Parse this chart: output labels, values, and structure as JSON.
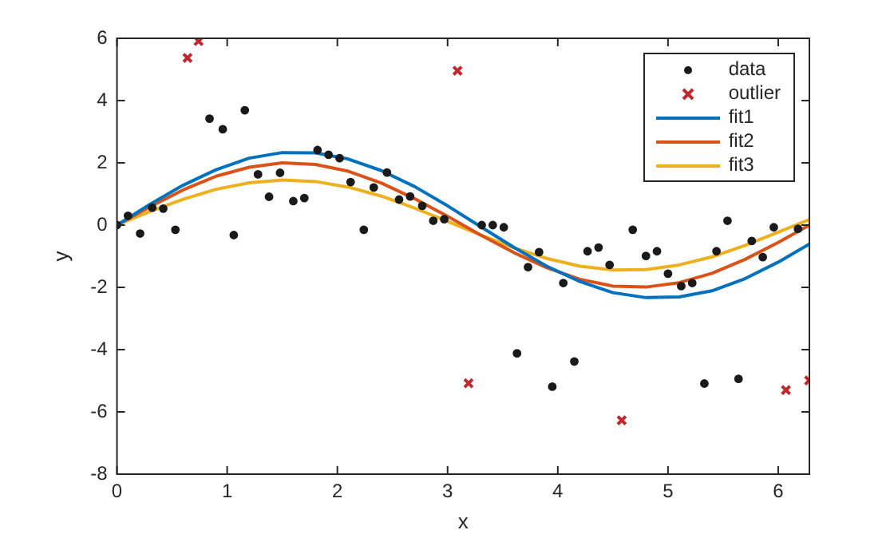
{
  "chart_data": {
    "type": "scatter",
    "xlabel": "x",
    "ylabel": "y",
    "xlim": [
      0,
      6.283
    ],
    "xticks": [
      0,
      1,
      2,
      3,
      4,
      5,
      6
    ],
    "ylim": [
      -8,
      6
    ],
    "yticks": [
      -8,
      -6,
      -4,
      -2,
      0,
      2,
      4,
      6
    ],
    "grid": false,
    "legend": "top right",
    "series": [
      {
        "name": "data",
        "marker": "circle",
        "color": "#1a1a1a",
        "x": [
          0,
          0.1,
          0.21,
          0.32,
          0.42,
          0.53,
          0.84,
          0.96,
          1.06,
          1.16,
          1.28,
          1.38,
          1.48,
          1.6,
          1.7,
          1.82,
          1.92,
          2.02,
          2.12,
          2.24,
          2.33,
          2.45,
          2.56,
          2.66,
          2.77,
          2.87,
          2.97,
          3.31,
          3.41,
          3.51,
          3.63,
          3.73,
          3.83,
          3.95,
          4.05,
          4.15,
          4.27,
          4.37,
          4.47,
          4.68,
          4.8,
          4.9,
          5.0,
          5.12,
          5.22,
          5.33,
          5.44,
          5.54,
          5.64,
          5.76,
          5.86,
          5.96,
          6.18
        ],
        "values": [
          0,
          0.3,
          -0.27,
          0.56,
          0.53,
          -0.15,
          3.42,
          3.08,
          -0.32,
          3.69,
          1.63,
          0.91,
          1.68,
          0.77,
          0.87,
          2.41,
          2.26,
          2.15,
          1.38,
          -0.15,
          1.21,
          1.69,
          0.82,
          0.92,
          0.62,
          0.14,
          0.19,
          0,
          0,
          -0.07,
          -4.12,
          -1.35,
          -0.87,
          -5.19,
          -1.86,
          -4.38,
          -0.84,
          -0.72,
          -1.28,
          -0.15,
          -0.99,
          -0.84,
          -1.56,
          -1.96,
          -1.86,
          -5.09,
          -0.84,
          0.14,
          -4.94,
          -0.51,
          -1.03,
          -0.07,
          -0.12
        ]
      },
      {
        "name": "outlier",
        "marker": "cross",
        "color": "#c0282d",
        "x": [
          0.64,
          0.74,
          3.09,
          3.19,
          4.58,
          6.07,
          6.28
        ],
        "values": [
          5.37,
          5.91,
          4.96,
          -5.08,
          -6.27,
          -5.3,
          -4.99
        ]
      },
      {
        "name": "fit1",
        "type": "line",
        "marker": "none",
        "color": "#0072bd",
        "x": [
          0,
          0.3,
          0.6,
          0.9,
          1.2,
          1.5,
          1.8,
          2.1,
          2.4,
          2.7,
          3.0,
          3.3,
          3.6,
          3.9,
          4.2,
          4.5,
          4.8,
          5.1,
          5.4,
          5.7,
          6.0,
          6.283
        ],
        "values": [
          0,
          0.67,
          1.28,
          1.78,
          2.15,
          2.33,
          2.32,
          2.12,
          1.75,
          1.24,
          0.62,
          -0.05,
          -0.71,
          -1.32,
          -1.81,
          -2.17,
          -2.33,
          -2.31,
          -2.11,
          -1.72,
          -1.19,
          -0.61
        ]
      },
      {
        "name": "fit2",
        "type": "line",
        "marker": "none",
        "color": "#d95319",
        "x": [
          0,
          0.3,
          0.6,
          0.9,
          1.2,
          1.5,
          1.8,
          2.1,
          2.4,
          2.7,
          3.0,
          3.3,
          3.6,
          3.9,
          4.2,
          4.5,
          4.8,
          5.1,
          5.4,
          5.7,
          6.0,
          6.283
        ],
        "values": [
          0,
          0.59,
          1.13,
          1.57,
          1.86,
          2.0,
          1.95,
          1.73,
          1.35,
          0.85,
          0.28,
          -0.32,
          -0.88,
          -1.37,
          -1.74,
          -1.96,
          -1.99,
          -1.85,
          -1.55,
          -1.1,
          -0.56,
          0
        ]
      },
      {
        "name": "fit3",
        "type": "line",
        "marker": "none",
        "color": "#edb120",
        "x": [
          0,
          0.3,
          0.6,
          0.9,
          1.2,
          1.5,
          1.8,
          2.1,
          2.4,
          2.7,
          3.0,
          3.3,
          3.6,
          3.9,
          4.2,
          4.5,
          4.8,
          5.1,
          5.4,
          5.7,
          6.0,
          6.283
        ],
        "values": [
          0,
          0.44,
          0.83,
          1.15,
          1.36,
          1.45,
          1.4,
          1.22,
          0.93,
          0.55,
          0.12,
          -0.32,
          -0.73,
          -1.07,
          -1.32,
          -1.44,
          -1.43,
          -1.28,
          -1.02,
          -0.65,
          -0.23,
          0.18
        ]
      }
    ]
  }
}
